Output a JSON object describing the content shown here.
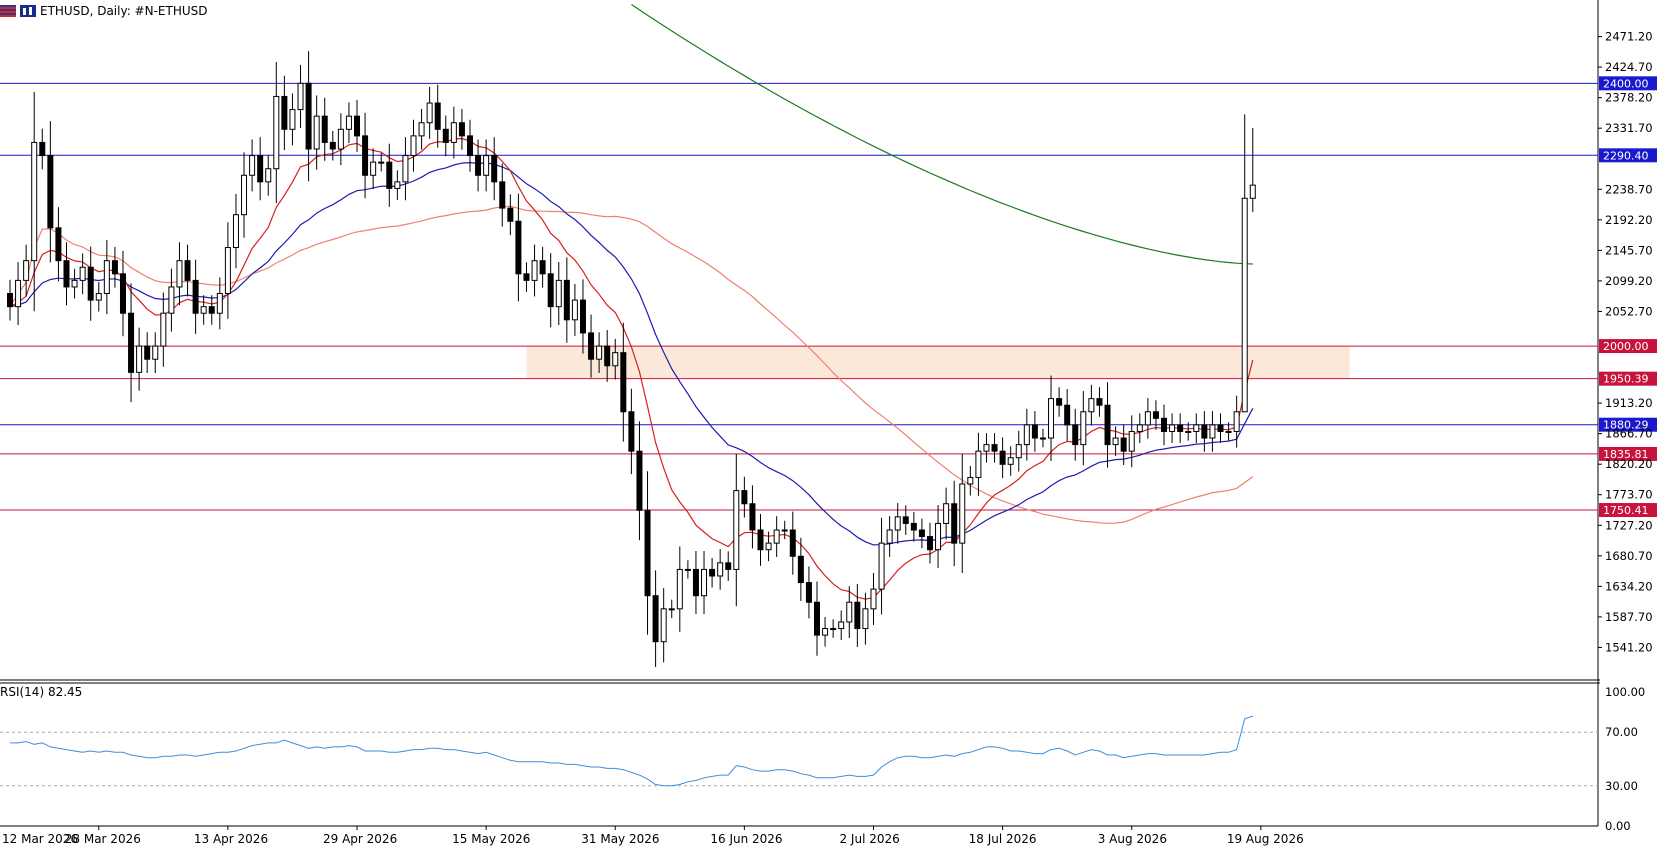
{
  "header": {
    "symbol_label": "ETHUSD, Daily:  #N-ETHUSD"
  },
  "rsi": {
    "label": "RSI(14) 82.45",
    "levels": [
      70,
      30
    ]
  },
  "colors": {
    "ema_fast": "#d62020",
    "ema_mid": "#1c1cb0",
    "sma_slow": "#f08070",
    "sma_long": "#1e7a1e",
    "rsi_line": "#3c8fdc",
    "zone_fill": "#fbe8d8",
    "level_blue": "#1a1acc",
    "level_red": "#c8143c"
  },
  "chart_data": {
    "type": "candlestick",
    "title": "ETHUSD, Daily:  #N-ETHUSD",
    "ylim": [
      1494.7,
      2517.7
    ],
    "y_ticks": [
      "2471.20",
      "2424.70",
      "2378.20",
      "2331.70",
      "2238.70",
      "2192.20",
      "2145.70",
      "2099.20",
      "2052.70",
      "1913.20",
      "1866.70",
      "1820.20",
      "1773.70",
      "1727.20",
      "1680.70",
      "1634.20",
      "1587.70",
      "1541.20"
    ],
    "x_labels": [
      {
        "label": "12 Mar 2026",
        "day": -5
      },
      {
        "label": "28 Mar 2026",
        "day": 11
      },
      {
        "label": "13 Apr 2026",
        "day": 27
      },
      {
        "label": "29 Apr 2026",
        "day": 43
      },
      {
        "label": "15 May 2026",
        "day": 59
      },
      {
        "label": "31 May 2026",
        "day": 75
      },
      {
        "label": "16 Jun 2026",
        "day": 91
      },
      {
        "label": "2 Jul 2026",
        "day": 107
      },
      {
        "label": "18 Jul 2026",
        "day": 123
      },
      {
        "label": "3 Aug 2026",
        "day": 139
      },
      {
        "label": "19 Aug 2026",
        "day": 155
      }
    ],
    "levels": [
      {
        "label": "2400.00",
        "value": 2400.0,
        "kind": "blue"
      },
      {
        "label": "2290.40",
        "value": 2290.4,
        "kind": "blue"
      },
      {
        "label": "2000.00",
        "value": 2000.0,
        "kind": "red"
      },
      {
        "label": "1950.39",
        "value": 1950.39,
        "kind": "red"
      },
      {
        "label": "1880.29",
        "value": 1880.29,
        "kind": "blue"
      },
      {
        "label": "1835.81",
        "value": 1835.81,
        "kind": "red"
      },
      {
        "label": "1750.41",
        "value": 1750.41,
        "kind": "red"
      }
    ],
    "zone": {
      "from": 1950.39,
      "to": 2000.0,
      "start_day": 64,
      "end_day": 166
    },
    "candles_c": [
      2060,
      2100,
      2130,
      2310,
      2290,
      2180,
      2130,
      2090,
      2100,
      2120,
      2070,
      2080,
      2130,
      2110,
      2050,
      1960,
      2000,
      1980,
      2000,
      2050,
      2090,
      2130,
      2100,
      2050,
      2060,
      2050,
      2080,
      2150,
      2200,
      2260,
      2290,
      2250,
      2270,
      2380,
      2330,
      2360,
      2400,
      2300,
      2350,
      2310,
      2300,
      2330,
      2350,
      2320,
      2260,
      2280,
      2280,
      2240,
      2250,
      2290,
      2320,
      2340,
      2370,
      2330,
      2310,
      2340,
      2320,
      2290,
      2260,
      2290,
      2250,
      2210,
      2190,
      2110,
      2100,
      2130,
      2110,
      2060,
      2100,
      2040,
      2070,
      2020,
      1980,
      2000,
      1970,
      1990,
      1900,
      1840,
      1750,
      1620,
      1550,
      1600,
      1600,
      1660,
      1660,
      1620,
      1660,
      1650,
      1670,
      1660,
      1780,
      1760,
      1720,
      1690,
      1700,
      1720,
      1720,
      1680,
      1640,
      1610,
      1560,
      1570,
      1570,
      1580,
      1610,
      1570,
      1600,
      1630,
      1700,
      1720,
      1740,
      1730,
      1720,
      1710,
      1690,
      1730,
      1760,
      1700,
      1790,
      1800,
      1840,
      1850,
      1840,
      1820,
      1830,
      1850,
      1880,
      1860,
      1860,
      1920,
      1910,
      1880,
      1850,
      1900,
      1920,
      1910,
      1850,
      1860,
      1840,
      1870,
      1880,
      1900,
      1890,
      1870,
      1880,
      1870,
      1870,
      1880,
      1860,
      1880,
      1870,
      1870,
      1900,
      2225,
      2245
    ],
    "rsi_values": [
      62,
      62,
      63,
      61,
      62,
      59,
      58,
      57,
      56,
      55,
      56,
      55,
      56,
      55,
      55,
      53,
      52,
      51,
      51,
      52,
      52,
      53,
      53,
      52,
      53,
      54,
      55,
      55,
      56,
      58,
      60,
      61,
      62,
      62,
      64,
      62,
      60,
      58,
      59,
      58,
      59,
      59,
      60,
      59,
      56,
      56,
      56,
      55,
      55,
      56,
      57,
      57,
      58,
      58,
      57,
      57,
      56,
      55,
      54,
      55,
      53,
      51,
      49,
      48,
      48,
      48,
      48,
      47,
      47,
      46,
      46,
      45,
      44,
      44,
      43,
      43,
      42,
      40,
      38,
      35,
      31,
      30,
      30,
      31,
      33,
      34,
      36,
      37,
      38,
      38,
      45,
      44,
      42,
      41,
      41,
      42,
      42,
      41,
      39,
      38,
      36,
      36,
      36,
      37,
      38,
      37,
      37,
      38,
      44,
      48,
      51,
      52,
      52,
      51,
      51,
      52,
      53,
      52,
      54,
      55,
      57,
      59,
      59,
      58,
      56,
      56,
      55,
      54,
      54,
      57,
      58,
      56,
      53,
      55,
      57,
      56,
      53,
      53,
      51,
      52,
      53,
      54,
      54,
      53,
      53,
      53,
      53,
      53,
      53,
      54,
      55,
      55,
      57,
      80,
      82
    ]
  }
}
